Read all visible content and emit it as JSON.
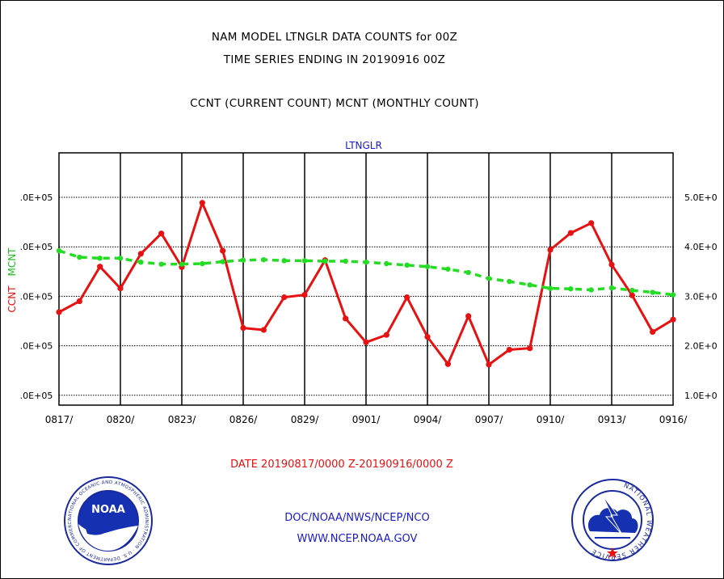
{
  "chart_data": {
    "type": "line",
    "title_lines": [
      "NAM MODEL LTNGLR DATA COUNTS for 00Z",
      "TIME SERIES ENDING IN 20190916 00Z",
      "CCNT (CURRENT COUNT) MCNT (MONTHLY COUNT)"
    ],
    "panel_label": "LTNGLR",
    "x": [
      "0817",
      "0818",
      "0819",
      "0820",
      "0821",
      "0822",
      "0823",
      "0824",
      "0825",
      "0826",
      "0827",
      "0828",
      "0829",
      "0830",
      "0831",
      "0901",
      "0902",
      "0903",
      "0904",
      "0905",
      "0906",
      "0907",
      "0908",
      "0909",
      "0910",
      "0911",
      "0912",
      "0913",
      "0914",
      "0915",
      "0916"
    ],
    "x_tick_labels": [
      "0817/",
      "0820/",
      "0823/",
      "0826/",
      "0829/",
      "0901/",
      "0904/",
      "0907/",
      "0910/",
      "0913/",
      "0916/"
    ],
    "x_tick_every": 3,
    "xlabel": "DATE 20190817/0000 Z-20190916/0000 Z",
    "y_range": [
      0.8,
      5.9
    ],
    "y_ticks": [
      1.0,
      2.0,
      3.0,
      4.0,
      5.0
    ],
    "y_left_tick_labels": [
      ".0E+05",
      ".0E+05",
      ".0E+05",
      ".0E+05",
      ".0E+05"
    ],
    "y_right_tick_labels": [
      "1.0E+0",
      "2.0E+0",
      "3.0E+0",
      "4.0E+0",
      "5.0E+0"
    ],
    "y_left_labels": [
      "CCNT",
      "MCNT"
    ],
    "grid": true,
    "series": [
      {
        "name": "CCNT",
        "color": "#e81010",
        "style": "solid",
        "values": [
          2.68,
          2.9,
          3.6,
          3.16,
          3.86,
          4.27,
          3.59,
          4.89,
          3.92,
          2.36,
          2.32,
          2.98,
          3.03,
          3.73,
          2.55,
          2.07,
          2.22,
          2.98,
          2.18,
          1.63,
          2.6,
          1.62,
          1.92,
          1.95,
          3.94,
          4.28,
          4.48,
          3.64,
          3.02,
          2.28,
          2.53
        ]
      },
      {
        "name": "MCNT",
        "color": "#22dd22",
        "style": "dashed",
        "values": [
          3.92,
          3.79,
          3.77,
          3.77,
          3.69,
          3.65,
          3.65,
          3.66,
          3.7,
          3.73,
          3.74,
          3.72,
          3.72,
          3.71,
          3.71,
          3.69,
          3.66,
          3.63,
          3.6,
          3.55,
          3.48,
          3.36,
          3.3,
          3.23,
          3.16,
          3.15,
          3.13,
          3.17,
          3.12,
          3.08,
          3.03
        ]
      }
    ]
  },
  "footer": {
    "line1": "DOC/NOAA/NWS/NCEP/NCO",
    "line2": "WWW.NCEP.NOAA.GOV"
  },
  "logos": {
    "noaa": {
      "emblem_text": "NOAA",
      "ring_text": "NATIONAL OCEANIC AND ATMOSPHERIC ADMINISTRATION · U.S. DEPARTMENT OF COMMERCE",
      "colors": {
        "ring": "#1a2a9e",
        "sky": "#1530b0",
        "bird": "#ffffff"
      }
    },
    "nws": {
      "ring_text": "NATIONAL WEATHER SERVICE",
      "colors": {
        "ring": "#1a2a9e",
        "cloud": "#1530b0",
        "star": "#e81010"
      }
    }
  }
}
